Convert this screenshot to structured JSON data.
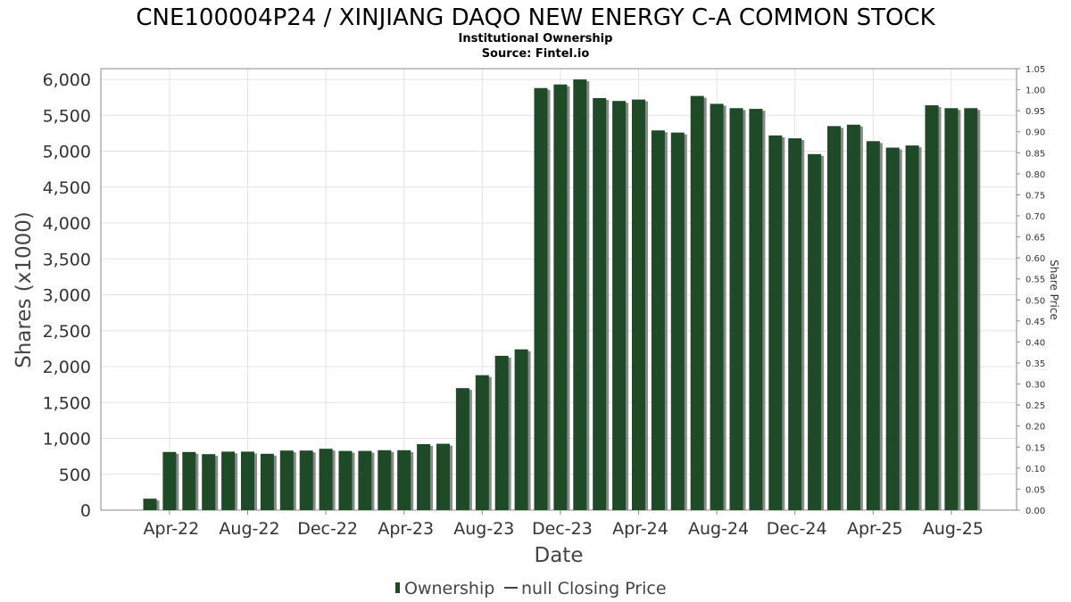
{
  "chart_data": {
    "type": "bar",
    "title": "CNE100004P24 / XINJIANG DAQO NEW ENERGY C-A COMMON STOCK",
    "subtitle_lines": [
      "Institutional Ownership",
      "Source: Fintel.io"
    ],
    "xlabel": "Date",
    "ylabel": "Shares (x1000)",
    "y2label": "Share Price",
    "ylim": [
      0,
      6150
    ],
    "y2lim": [
      0,
      1.05
    ],
    "grid": true,
    "legend_position": "bottom-center",
    "x_tick_labels": [
      "Apr-22",
      "Aug-22",
      "Dec-22",
      "Apr-23",
      "Aug-23",
      "Dec-23",
      "Apr-24",
      "Aug-24",
      "Dec-24",
      "Apr-25",
      "Aug-25"
    ],
    "y_tick_values": [
      0,
      500,
      1000,
      1500,
      2000,
      2500,
      3000,
      3500,
      4000,
      4500,
      5000,
      5500,
      6000
    ],
    "y_tick_labels": [
      "0",
      "500",
      "1,000",
      "1,500",
      "2,000",
      "2,500",
      "3,000",
      "3,500",
      "4,000",
      "4,500",
      "5,000",
      "5,500",
      "6,000"
    ],
    "y2_tick_labels": [
      "0.00",
      "0.05",
      "0.10",
      "0.15",
      "0.20",
      "0.25",
      "0.30",
      "0.35",
      "0.40",
      "0.45",
      "0.50",
      "0.55",
      "0.60",
      "0.65",
      "0.70",
      "0.75",
      "0.80",
      "0.85",
      "0.90",
      "0.95",
      "1.00",
      "1.05"
    ],
    "series": [
      {
        "name": "Ownership",
        "color": "#1f4a28",
        "values": [
          160,
          810,
          810,
          780,
          815,
          815,
          785,
          830,
          830,
          855,
          825,
          825,
          835,
          835,
          920,
          925,
          1700,
          1880,
          2150,
          2240,
          5880,
          5930,
          6000,
          5740,
          5700,
          5720,
          5290,
          5260,
          5770,
          5660,
          5600,
          5590,
          5220,
          5180,
          4960,
          5350,
          5370,
          5140,
          5050,
          5080,
          5640,
          5600,
          5600
        ]
      },
      {
        "name": "null Closing Price",
        "color": "#444444",
        "values": []
      }
    ]
  },
  "legend": {
    "items": [
      "Ownership",
      "null Closing Price"
    ]
  }
}
